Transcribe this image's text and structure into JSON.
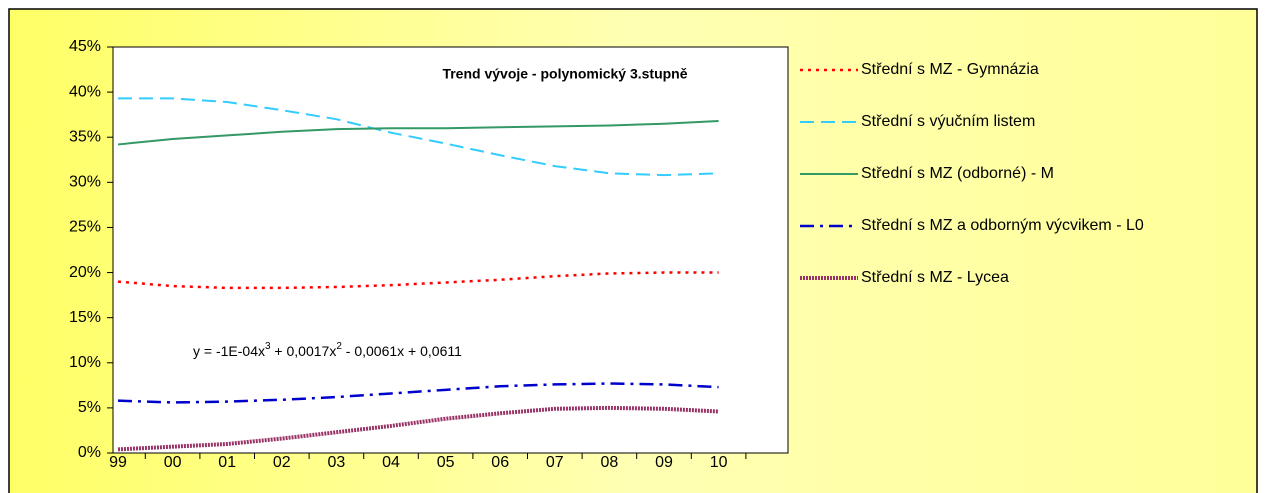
{
  "chart_data": {
    "type": "line",
    "annotations": {
      "title": "Trend vývoje - polynomický 3.stupně",
      "equation": [
        "y = -1E-04x",
        "3",
        " + 0,0017x",
        "2",
        " - 0,0061x + 0,0611"
      ]
    },
    "categories": [
      "99",
      "00",
      "01",
      "02",
      "03",
      "04",
      "05",
      "06",
      "07",
      "08",
      "09",
      "10"
    ],
    "ylim": [
      0,
      45
    ],
    "yticks": [
      {
        "value": 0,
        "label": "0%"
      },
      {
        "value": 5,
        "label": "5%"
      },
      {
        "value": 10,
        "label": "10%"
      },
      {
        "value": 15,
        "label": "15%"
      },
      {
        "value": 20,
        "label": "20%"
      },
      {
        "value": 25,
        "label": "25%"
      },
      {
        "value": 30,
        "label": "30%"
      },
      {
        "value": 35,
        "label": "35%"
      },
      {
        "value": 40,
        "label": "40%"
      },
      {
        "value": 45,
        "label": "45%"
      }
    ],
    "grid": false,
    "legend": "right",
    "series": [
      {
        "name": "Střední s MZ - Gymnázia",
        "color": "#ff0000",
        "line_style": "dotted",
        "values": [
          19.0,
          18.5,
          18.3,
          18.3,
          18.4,
          18.6,
          18.9,
          19.2,
          19.6,
          19.9,
          20.0,
          20.0
        ]
      },
      {
        "name": "Střední s výučním listem",
        "color": "#33ccff",
        "line_style": "dashed",
        "values": [
          39.3,
          39.3,
          38.9,
          38.0,
          37.0,
          35.5,
          34.3,
          33.0,
          31.8,
          31.0,
          30.8,
          31.0
        ]
      },
      {
        "name": "Střední s MZ (odborné) - M",
        "color": "#339966",
        "line_style": "solid",
        "values": [
          34.2,
          34.8,
          35.2,
          35.6,
          35.9,
          36.0,
          36.0,
          36.1,
          36.2,
          36.3,
          36.5,
          36.8
        ]
      },
      {
        "name": "Střední s MZ a odborným výcvikem - L0",
        "color": "#0000cc",
        "line_style": "dashdot",
        "values": [
          5.8,
          5.6,
          5.7,
          5.9,
          6.2,
          6.6,
          7.0,
          7.4,
          7.6,
          7.7,
          7.6,
          7.3
        ]
      },
      {
        "name": "Střední s MZ - Lycea",
        "color": "#993366",
        "line_style": "textured",
        "values": [
          0.4,
          0.7,
          1.0,
          1.6,
          2.3,
          3.0,
          3.8,
          4.4,
          4.9,
          5.0,
          4.9,
          4.6
        ]
      }
    ]
  }
}
